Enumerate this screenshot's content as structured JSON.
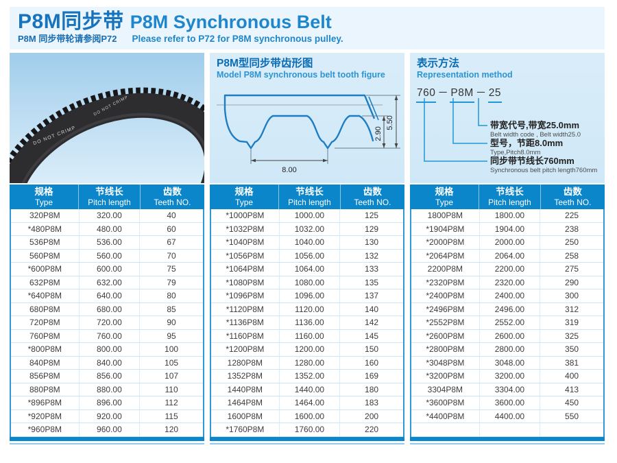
{
  "header": {
    "title_zh": "P8M同步带",
    "title_en": "P8M Synchronous Belt",
    "subtitle_zh": "P8M 同步带轮请参阅P72",
    "subtitle_en": "Please refer to P72 for P8M synchronous pulley."
  },
  "belt_photo": {
    "print_text": "DO NOT CRIMP"
  },
  "tooth_figure": {
    "title_zh": "P8M型同步带齿形图",
    "title_en": "Model P8M synchronous belt tooth figure",
    "dims": {
      "pitch": "8.00",
      "tooth_depth": "2.90",
      "belt_height": "5.50"
    }
  },
  "representation": {
    "title_zh": "表示方法",
    "title_en": "Representation method",
    "code_parts": [
      "760",
      "P8M",
      "25"
    ],
    "separator": "－",
    "callouts": [
      {
        "zh": "带宽代号,带宽25.0mm",
        "en": "Belt width code , Belt width25.0"
      },
      {
        "zh": "型号，节距8.0mm",
        "en": "Type,Pitch8.0mm"
      },
      {
        "zh": "同步带节线长760mm",
        "en": "Synchronous belt pitch length760mm"
      }
    ]
  },
  "table_header": {
    "col1_zh": "规格",
    "col1_en": "Type",
    "col2_zh": "节线长",
    "col2_en": "Pitch length",
    "col3_zh": "齿数",
    "col3_en": "Teeth NO."
  },
  "tables": [
    {
      "rows": [
        [
          "320P8M",
          "320.00",
          "40"
        ],
        [
          "*480P8M",
          "480.00",
          "60"
        ],
        [
          "536P8M",
          "536.00",
          "67"
        ],
        [
          "560P8M",
          "560.00",
          "70"
        ],
        [
          "*600P8M",
          "600.00",
          "75"
        ],
        [
          "632P8M",
          "632.00",
          "79"
        ],
        [
          "*640P8M",
          "640.00",
          "80"
        ],
        [
          "680P8M",
          "680.00",
          "85"
        ],
        [
          "720P8M",
          "720.00",
          "90"
        ],
        [
          "760P8M",
          "760.00",
          "95"
        ],
        [
          "*800P8M",
          "800.00",
          "100"
        ],
        [
          "840P8M",
          "840.00",
          "105"
        ],
        [
          "856P8M",
          "856.00",
          "107"
        ],
        [
          "880P8M",
          "880.00",
          "110"
        ],
        [
          "*896P8M",
          "896.00",
          "112"
        ],
        [
          "*920P8M",
          "920.00",
          "115"
        ],
        [
          "*960P8M",
          "960.00",
          "120"
        ]
      ]
    },
    {
      "rows": [
        [
          "*1000P8M",
          "1000.00",
          "125"
        ],
        [
          "*1032P8M",
          "1032.00",
          "129"
        ],
        [
          "*1040P8M",
          "1040.00",
          "130"
        ],
        [
          "*1056P8M",
          "1056.00",
          "132"
        ],
        [
          "*1064P8M",
          "1064.00",
          "133"
        ],
        [
          "*1080P8M",
          "1080.00",
          "135"
        ],
        [
          "*1096P8M",
          "1096.00",
          "137"
        ],
        [
          "*1120P8M",
          "1120.00",
          "140"
        ],
        [
          "*1136P8M",
          "1136.00",
          "142"
        ],
        [
          "*1160P8M",
          "1160.00",
          "145"
        ],
        [
          "*1200P8M",
          "1200.00",
          "150"
        ],
        [
          "1280P8M",
          "1280.00",
          "160"
        ],
        [
          "1352P8M",
          "1352.00",
          "169"
        ],
        [
          "1440P8M",
          "1440.00",
          "180"
        ],
        [
          "1464P8M",
          "1464.00",
          "183"
        ],
        [
          "1600P8M",
          "1600.00",
          "200"
        ],
        [
          "*1760P8M",
          "1760.00",
          "220"
        ]
      ]
    },
    {
      "rows": [
        [
          "1800P8M",
          "1800.00",
          "225"
        ],
        [
          "*1904P8M",
          "1904.00",
          "238"
        ],
        [
          "*2000P8M",
          "2000.00",
          "250"
        ],
        [
          "*2064P8M",
          "2064.00",
          "258"
        ],
        [
          "2200P8M",
          "2200.00",
          "275"
        ],
        [
          "*2320P8M",
          "2320.00",
          "290"
        ],
        [
          "*2400P8M",
          "2400.00",
          "300"
        ],
        [
          "*2496P8M",
          "2496.00",
          "312"
        ],
        [
          "*2552P8M",
          "2552.00",
          "319"
        ],
        [
          "*2600P8M",
          "2600.00",
          "325"
        ],
        [
          "*2800P8M",
          "2800.00",
          "350"
        ],
        [
          "*3048P8M",
          "3048.00",
          "381"
        ],
        [
          "*3200P8M",
          "3200.00",
          "400"
        ],
        [
          "3304P8M",
          "3304.00",
          "413"
        ],
        [
          "*3600P8M",
          "3600.00",
          "450"
        ],
        [
          "*4400P8M",
          "4400.00",
          "550"
        ],
        [
          "",
          "",
          ""
        ]
      ]
    }
  ],
  "colors": {
    "table_header_blue": "#0c86cb",
    "title_blue": "#1873bd",
    "title_light_blue": "#1e86cc",
    "panel_light_blue": "#cfe8f7",
    "header_band_blue": "#eaf5fd",
    "diagram_line_blue": "#1e7dc2",
    "connector_blue": "#2296d4"
  }
}
